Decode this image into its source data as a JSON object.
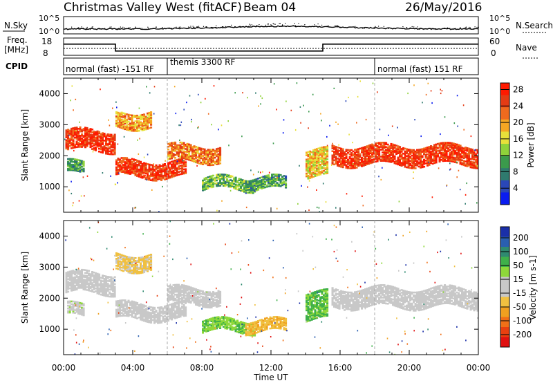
{
  "header": {
    "station": "Christmas Valley West (fitACF)",
    "beam": "Beam 04",
    "date": "26/May/2016"
  },
  "noise_panel": {
    "left_label": "N.Sky",
    "right_label": "N.Search",
    "left_ticks": [
      "10^5",
      "10^0"
    ],
    "right_ticks": [
      "10^5",
      "10^0"
    ]
  },
  "freq_panel": {
    "left_label_line1": "Freq.",
    "left_label_line2": "[MHz]",
    "left_ticks": [
      "18",
      "8"
    ],
    "right_label": "Nave",
    "right_ticks": [
      "60",
      "0"
    ]
  },
  "cpid_panel": {
    "label": "CPID",
    "segments": [
      "normal (fast) -151 RF",
      "themis 3300 RF",
      "normal (fast) 151 RF"
    ],
    "segment_starts_hours": [
      0,
      6,
      18
    ]
  },
  "power_panel": {
    "ylabel": "Slant Range [km]",
    "colorbar_label": "Power [dB]",
    "colorbar_ticks": [
      "4",
      "8",
      "12",
      "16",
      "20",
      "24",
      "28"
    ],
    "colorbar_colors": [
      "#0a1cf0",
      "#2a47b8",
      "#2f7a6e",
      "#3b9a4c",
      "#8fd23a",
      "#e8e03a",
      "#f5a623",
      "#ef6a1e",
      "#e43b14",
      "#ff1a00"
    ]
  },
  "velocity_panel": {
    "ylabel": "Slant Range [km]",
    "colorbar_label": "Velocity [m s-1]",
    "colorbar_ticks": [
      "200",
      "100",
      "50",
      "15",
      "-15",
      "-50",
      "-100",
      "-200"
    ],
    "colorbar_colors": [
      "#1a2fa8",
      "#2a5fb0",
      "#2f8a70",
      "#3fb04a",
      "#8ed83a",
      "#c8c8c8",
      "#c8c8c8",
      "#f0c040",
      "#f0a020",
      "#f07018",
      "#e84010",
      "#e01010"
    ]
  },
  "range_ticks": [
    "1000",
    "2000",
    "3000",
    "4000"
  ],
  "time_ticks": [
    "00:00",
    "04:00",
    "08:00",
    "12:00",
    "16:00",
    "20:00",
    "00:00"
  ],
  "xlabel": "Time UT",
  "chart_data": {
    "type": "heatmap",
    "title": "Christmas Valley West (fitACF)",
    "subtitle": "Beam 04 — 26/May/2016",
    "xlabel": "Time UT",
    "ylabel": "Slant Range [km]",
    "xlim_hours": [
      0,
      24
    ],
    "ylim_km": [
      180,
      4500
    ],
    "power_db_range": [
      0,
      30
    ],
    "velocity_range": [
      -200,
      200
    ],
    "frequency_mhz": {
      "segments": [
        {
          "start_hour": 0,
          "end_hour": 3,
          "value": 14.5
        },
        {
          "start_hour": 3,
          "end_hour": 15,
          "value": 10.5
        },
        {
          "start_hour": 15,
          "end_hour": 24,
          "value": 14.5
        }
      ]
    },
    "backscatter_regions": [
      {
        "t0": 0.1,
        "t1": 3.0,
        "r0": 2150,
        "r1": 2800,
        "power_db": 26,
        "velocity": -10
      },
      {
        "t0": 0.2,
        "t1": 1.2,
        "r0": 1400,
        "r1": 1800,
        "power_db": 10,
        "velocity": 20
      },
      {
        "t0": 3.0,
        "t1": 7.0,
        "r0": 1300,
        "r1": 1800,
        "power_db": 26,
        "velocity": -5
      },
      {
        "t0": 6.0,
        "t1": 9.0,
        "r0": 1800,
        "r1": 2300,
        "power_db": 22,
        "velocity": 0
      },
      {
        "t0": 3.0,
        "t1": 5.0,
        "r0": 2900,
        "r1": 3400,
        "power_db": 20,
        "velocity": -40
      },
      {
        "t0": 8.0,
        "t1": 11.0,
        "r0": 900,
        "r1": 1300,
        "power_db": 12,
        "velocity": 60
      },
      {
        "t0": 10.5,
        "t1": 12.8,
        "r0": 900,
        "r1": 1300,
        "power_db": 10,
        "velocity": -60
      },
      {
        "t0": 14.0,
        "t1": 15.2,
        "r0": 1300,
        "r1": 2200,
        "power_db": 18,
        "velocity": 70
      },
      {
        "t0": 15.5,
        "t1": 24.0,
        "r0": 1700,
        "r1": 2300,
        "power_db": 26,
        "velocity": 5
      }
    ]
  }
}
